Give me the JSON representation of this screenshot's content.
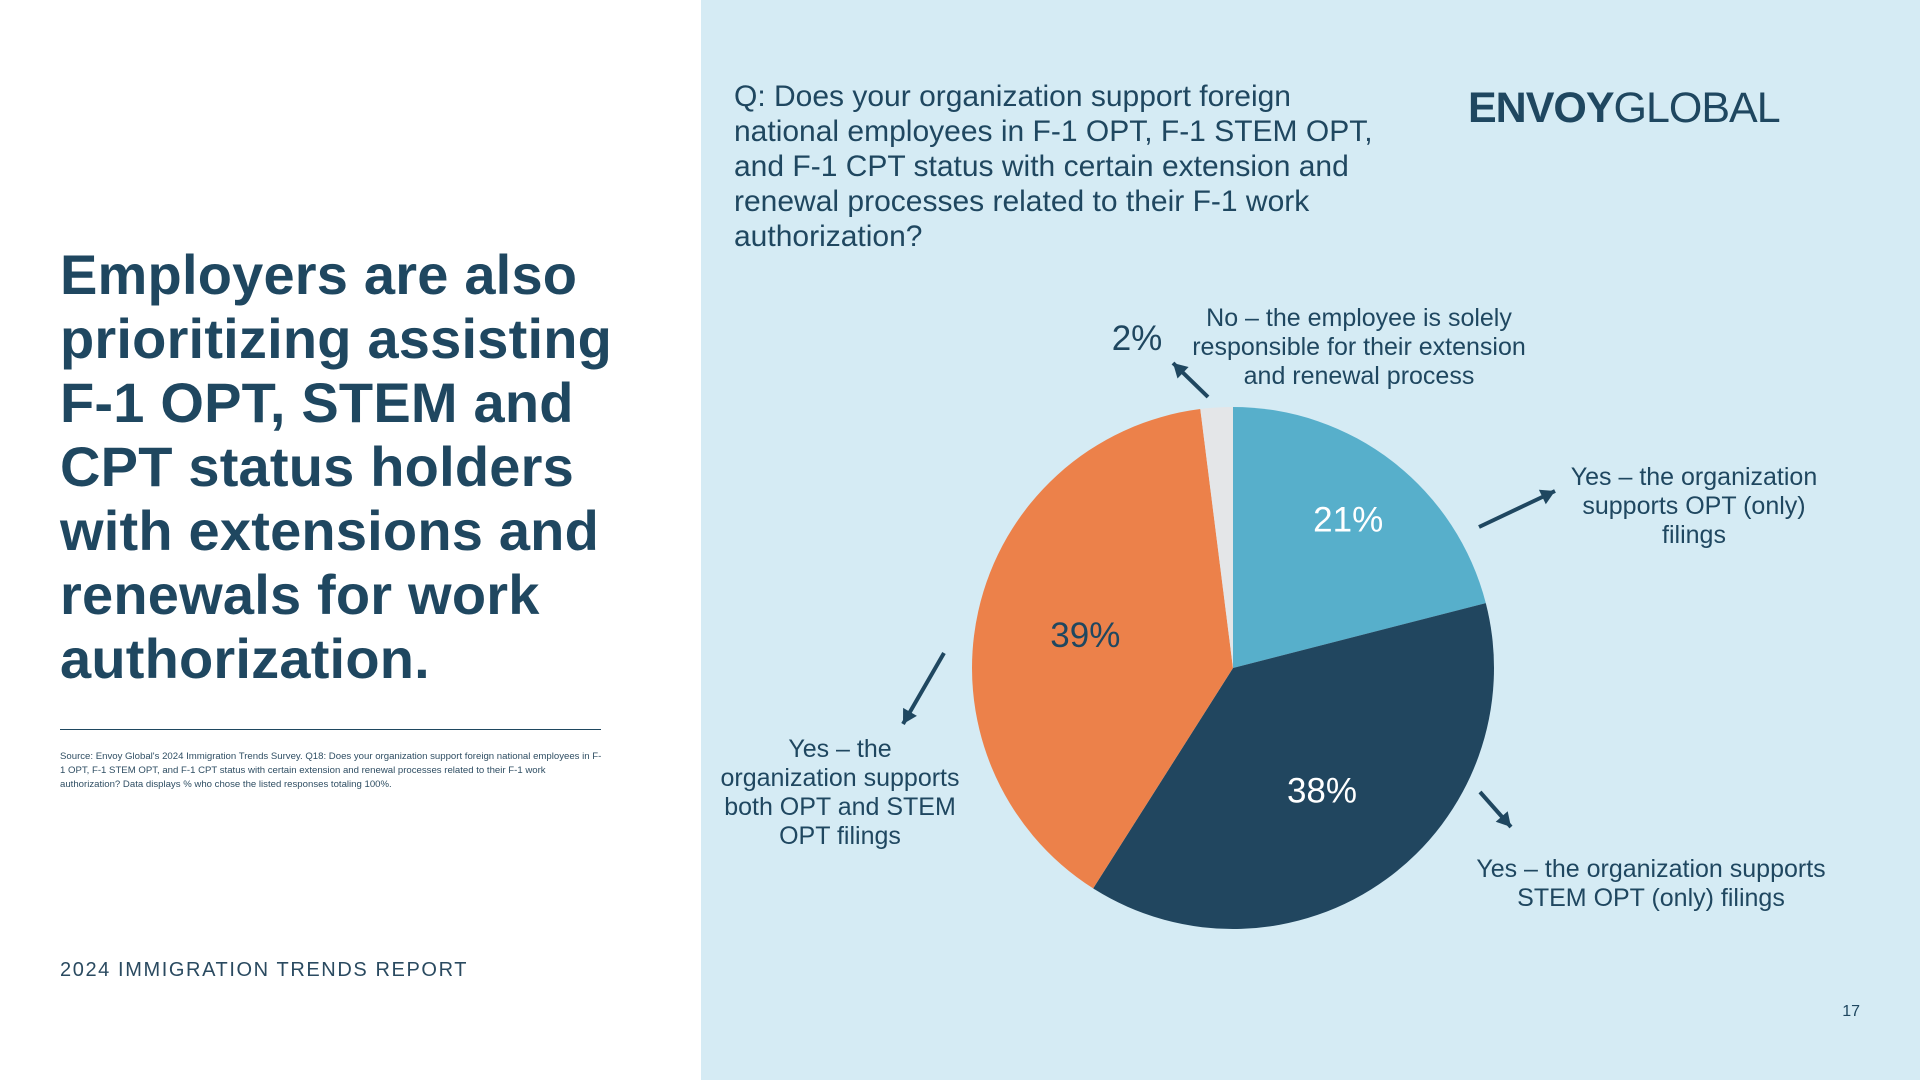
{
  "slide": {
    "headline": "Employers are also prioritizing assisting F-1 OPT, STEM and CPT status holders with extensions and renewals for work authorization.",
    "source_note": "Source: Envoy Global's 2024 Immigration Trends Survey. Q18: Does your organization support foreign national employees in F-1 OPT, F-1 STEM OPT, and F-1 CPT status with certain extension and renewal processes related to their F-1 work authorization? Data displays % who chose the listed responses totaling 100%.",
    "report_footer": "2024 IMMIGRATION TRENDS REPORT",
    "page_number": "17"
  },
  "logo": {
    "bold": "ENVOY",
    "light": "GLOBAL"
  },
  "colors": {
    "panel_bg": "#d5ebf4",
    "text": "#1f4760",
    "slice_opt_only": "#57afcb",
    "slice_stem_only": "#21465f",
    "slice_both": "#ec814a",
    "slice_no": "#e4e6e8",
    "label_on_dark": "#ffffff",
    "label_on_orange": "#1f4760"
  },
  "chart_data": {
    "type": "pie",
    "title": "Q: Does your organization support foreign national employees in F-1 OPT, F-1 STEM OPT, and F-1 CPT status with certain extension and renewal processes related to their F-1 work authorization?",
    "start": "12 o'clock, clockwise",
    "slices": [
      {
        "key": "opt_only",
        "value": 21,
        "label": "21%",
        "legend": [
          "Yes – the organization",
          "supports OPT (only)",
          "filings"
        ]
      },
      {
        "key": "stem_only",
        "value": 38,
        "label": "38%",
        "legend": [
          "Yes – the organization supports",
          "STEM OPT (only) filings"
        ]
      },
      {
        "key": "both",
        "value": 39,
        "label": "39%",
        "legend": [
          "Yes – the",
          "organization supports",
          "both OPT and STEM",
          "OPT filings"
        ]
      },
      {
        "key": "no",
        "value": 2,
        "label": "2%",
        "legend": [
          "No – the employee is solely",
          "responsible for their extension",
          "and renewal process"
        ]
      }
    ]
  }
}
